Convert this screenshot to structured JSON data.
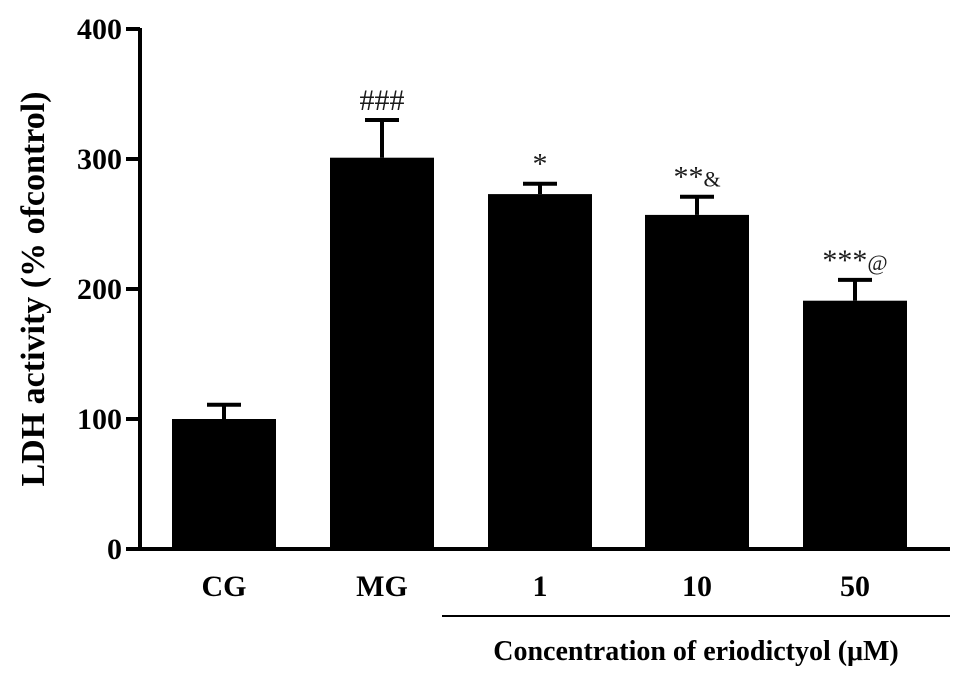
{
  "chart_data": {
    "type": "bar",
    "categories": [
      "CG",
      "MG",
      "1",
      "10",
      "50"
    ],
    "values": [
      100,
      301,
      273,
      257,
      191
    ],
    "errors": [
      11,
      29,
      8,
      14,
      16
    ],
    "annotations": [
      {
        "main": "",
        "suffix": ""
      },
      {
        "main": "###",
        "suffix": ""
      },
      {
        "main": "*",
        "suffix": ""
      },
      {
        "main": "**",
        "suffix": "&"
      },
      {
        "main": "***",
        "suffix": "@"
      }
    ],
    "title": "",
    "xlabel": "Concentration of eriodictyol (μM)",
    "xlabel_group_indices": [
      2,
      3,
      4
    ],
    "ylabel": "LDH activity (% ofcontrol)",
    "ylim": [
      0,
      400
    ],
    "yticks": [
      "0",
      "100",
      "200",
      "300",
      "400"
    ],
    "bar_color": "#000000",
    "grid": false,
    "legend": "none"
  }
}
